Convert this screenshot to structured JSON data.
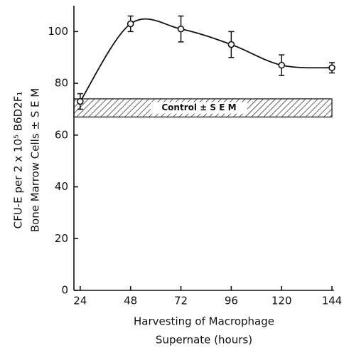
{
  "chart_data": {
    "type": "line",
    "ylabel": [
      "CFU-E per 2 x 10⁵ B6D2F₁",
      "Bone Marrow Cells ± S E M"
    ],
    "xlabel": [
      "Harvesting of Macrophage",
      "Supernate    (hours)"
    ],
    "x": [
      24,
      48,
      72,
      96,
      120,
      144
    ],
    "values": [
      73,
      103,
      101,
      95,
      87,
      86
    ],
    "errors": [
      3,
      3,
      5,
      5,
      4,
      2
    ],
    "control": {
      "low": 67,
      "high": 74,
      "label": "Control ± S E M"
    },
    "color": "#111111",
    "xlim": [
      21,
      145
    ],
    "ylim": [
      0,
      110
    ],
    "xticks": [
      24,
      48,
      72,
      96,
      120,
      144
    ],
    "yticks": [
      0,
      20,
      40,
      60,
      80,
      100
    ]
  }
}
